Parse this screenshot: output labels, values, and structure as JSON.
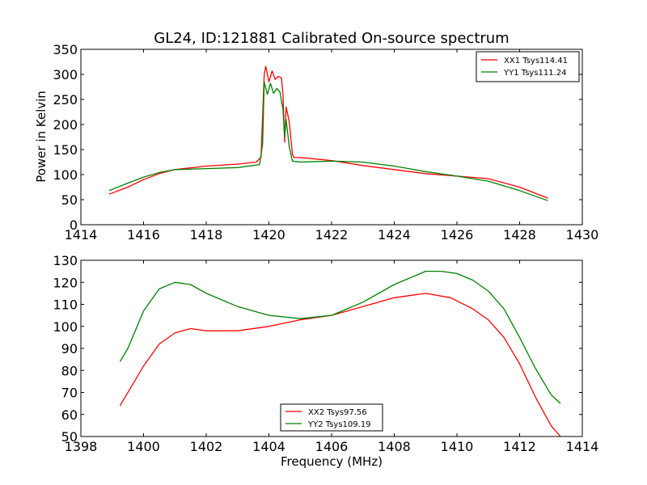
{
  "chart_data": [
    {
      "type": "line",
      "title": "GL24, ID:121881 Calibrated On-source spectrum",
      "xlabel": "",
      "ylabel": "Power in Kelvin",
      "xlim": [
        1414,
        1430
      ],
      "ylim": [
        0,
        350
      ],
      "xticks": [
        "1414",
        "1416",
        "1418",
        "1420",
        "1422",
        "1424",
        "1426",
        "1428",
        "1430"
      ],
      "yticks": [
        "0",
        "50",
        "100",
        "150",
        "200",
        "250",
        "300",
        "350"
      ],
      "grid": false,
      "legend_position": "top-right",
      "series": [
        {
          "name": "XX1 Tsys114.41",
          "color": "#ff0000",
          "x": [
            1414.9,
            1415.5,
            1416.0,
            1416.5,
            1417.0,
            1418.0,
            1419.0,
            1419.6,
            1419.75,
            1419.85,
            1419.9,
            1420.0,
            1420.1,
            1420.2,
            1420.3,
            1420.4,
            1420.45,
            1420.5,
            1420.55,
            1420.65,
            1420.75,
            1420.8,
            1421.0,
            1422.0,
            1423.0,
            1424.0,
            1425.0,
            1426.0,
            1427.0,
            1428.0,
            1428.9
          ],
          "y": [
            61,
            75,
            90,
            102,
            110,
            117,
            121,
            125,
            135,
            300,
            316,
            285,
            307,
            290,
            296,
            293,
            260,
            165,
            235,
            205,
            140,
            134,
            134,
            128,
            118,
            110,
            102,
            97,
            92,
            75,
            53
          ]
        },
        {
          "name": "YY1 Tsys111.24",
          "color": "#008000",
          "x": [
            1414.9,
            1415.5,
            1416.0,
            1416.5,
            1417.0,
            1418.0,
            1419.0,
            1419.7,
            1419.8,
            1419.85,
            1419.95,
            1420.05,
            1420.15,
            1420.25,
            1420.35,
            1420.45,
            1420.5,
            1420.55,
            1420.65,
            1420.75,
            1421.0,
            1422.0,
            1423.0,
            1424.0,
            1425.0,
            1426.0,
            1427.0,
            1428.0,
            1428.9
          ],
          "y": [
            68,
            83,
            95,
            104,
            110,
            112,
            114,
            120,
            160,
            285,
            260,
            282,
            262,
            272,
            265,
            230,
            175,
            210,
            155,
            127,
            125,
            127,
            125,
            117,
            106,
            97,
            87,
            68,
            48
          ]
        }
      ]
    },
    {
      "type": "line",
      "title": "",
      "xlabel": "Frequency (MHz)",
      "ylabel": "",
      "xlim": [
        1398,
        1414
      ],
      "ylim": [
        50,
        130
      ],
      "xticks": [
        "1398",
        "1400",
        "1402",
        "1404",
        "1406",
        "1408",
        "1410",
        "1412",
        "1414"
      ],
      "yticks": [
        "50",
        "60",
        "70",
        "80",
        "90",
        "100",
        "110",
        "120",
        "130"
      ],
      "grid": false,
      "legend_position": "bottom-center",
      "series": [
        {
          "name": "XX2 Tsys97.56",
          "color": "#ff0000",
          "x": [
            1399.25,
            1400.0,
            1400.5,
            1401.0,
            1401.5,
            1402.0,
            1403.0,
            1404.0,
            1405.0,
            1406.0,
            1407.0,
            1408.0,
            1409.0,
            1409.8,
            1410.5,
            1411.0,
            1411.5,
            1412.0,
            1412.5,
            1413.0,
            1413.3
          ],
          "y": [
            64,
            82,
            92,
            97,
            99,
            98,
            98,
            100,
            103,
            105,
            109,
            113,
            115,
            113,
            108,
            103,
            95,
            83,
            68,
            55,
            50
          ]
        },
        {
          "name": "YY2 Tsys109.19",
          "color": "#008000",
          "x": [
            1399.25,
            1399.5,
            1400.0,
            1400.5,
            1401.0,
            1401.5,
            1402.0,
            1403.0,
            1404.0,
            1405.0,
            1406.0,
            1407.0,
            1408.0,
            1409.0,
            1409.5,
            1410.0,
            1410.5,
            1411.0,
            1411.5,
            1412.0,
            1412.5,
            1413.0,
            1413.3
          ],
          "y": [
            84,
            90,
            107,
            117,
            120,
            119,
            115,
            109,
            105,
            103.5,
            105,
            111,
            119,
            125,
            125,
            124,
            121,
            116,
            108,
            95,
            81,
            69,
            65
          ]
        }
      ]
    }
  ]
}
